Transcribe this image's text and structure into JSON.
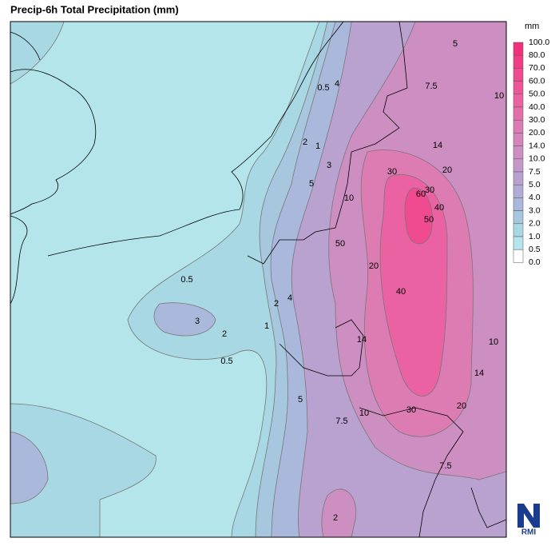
{
  "title": "Precip-6h Total Precipitation (mm)",
  "colorbar": {
    "unit": "mm",
    "levels": [
      {
        "value": 100,
        "label": "100.0"
      },
      {
        "value": 80,
        "label": "80.0"
      },
      {
        "value": 70,
        "label": "70.0"
      },
      {
        "value": 60,
        "label": "60.0"
      },
      {
        "value": 50,
        "label": "50.0"
      },
      {
        "value": 40,
        "label": "40.0"
      },
      {
        "value": 30,
        "label": "30.0"
      },
      {
        "value": 20,
        "label": "20.0"
      },
      {
        "value": 14,
        "label": "14.0"
      },
      {
        "value": 10,
        "label": "10.0"
      },
      {
        "value": 7.5,
        "label": "7.5"
      },
      {
        "value": 5,
        "label": "5.0"
      },
      {
        "value": 4,
        "label": "4.0"
      },
      {
        "value": 3,
        "label": "3.0"
      },
      {
        "value": 2,
        "label": "2.0"
      },
      {
        "value": 1,
        "label": "1.0"
      },
      {
        "value": 0.5,
        "label": "0.5"
      },
      {
        "value": 0,
        "label": "0.0"
      }
    ],
    "colors": [
      "#f3307c",
      "#f23d86",
      "#f04a90",
      "#ee569a",
      "#ea62a2",
      "#e46fab",
      "#dd7bb3",
      "#d585bb",
      "#cd8ec2",
      "#c498c8",
      "#b9a2cf",
      "#b0acd6",
      "#aab8db",
      "#a7c7de",
      "#a8d8e3",
      "#b3e5ea",
      "#ffffff"
    ]
  },
  "contour_labels": [
    "5",
    "7.5",
    "10",
    "0.5",
    "4",
    "1",
    "2",
    "3",
    "5",
    "10",
    "14",
    "20",
    "30",
    "30",
    "60",
    "40",
    "50",
    "50",
    "20",
    "40",
    "14",
    "10",
    "14",
    "20",
    "30",
    "10",
    "7.5",
    "5",
    "0.5",
    "3",
    "2",
    "1",
    "2",
    "4",
    "0.5",
    "2",
    "7.5"
  ],
  "logo": "RMI"
}
